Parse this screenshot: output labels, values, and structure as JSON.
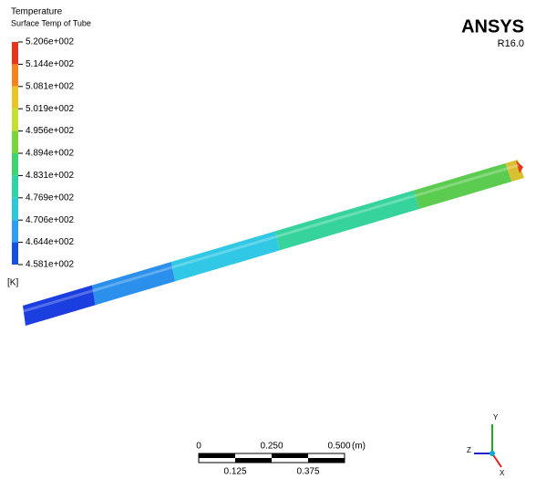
{
  "legend": {
    "title": "Temperature",
    "subtitle": "Surface Temp of Tube",
    "levels": [
      "5.206e+002",
      "5.144e+002",
      "5.081e+002",
      "5.019e+002",
      "4.956e+002",
      "4.894e+002",
      "4.831e+002",
      "4.769e+002",
      "4.706e+002",
      "4.644e+002",
      "4.581e+002"
    ],
    "unit": "[K]"
  },
  "logo": {
    "brand": "ANSYS",
    "version": "R16.0"
  },
  "scale_bar": {
    "top_labels": [
      "0",
      "0.250",
      "0.500"
    ],
    "unit": "(m)",
    "bottom_labels": [
      "0.125",
      "0.375"
    ]
  },
  "triad": {
    "y": "Y",
    "z": "Z",
    "x": "X"
  }
}
